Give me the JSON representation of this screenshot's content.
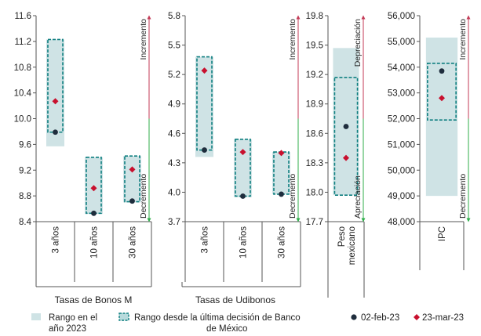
{
  "colors": {
    "range_year_fill": "#cfe3e5",
    "range_since_fill": "#b7dadc",
    "range_since_stroke": "#0f7f80",
    "feb_marker": "#1f2d3d",
    "mar_marker": "#c8102e",
    "arrow_up": "#c33a55",
    "arrow_down": "#2fae4a"
  },
  "legend": {
    "range_year": "Rango en el año 2023",
    "range_since": "Rango desde la última decisión de Banco de México",
    "date1": "02-feb-23",
    "date2": "23-mar-23"
  },
  "chart_data": [
    {
      "type": "range",
      "id": "bonos",
      "group_label": "Tasas de Bonos M",
      "ylim": [
        8.4,
        11.6
      ],
      "yticks": [
        "8.4",
        "8.8",
        "9.2",
        "9.6",
        "10.0",
        "10.4",
        "10.8",
        "11.2",
        "11.6"
      ],
      "categories": [
        "3 años",
        "10 años",
        "30 años"
      ],
      "range_year": [
        [
          9.57,
          11.23
        ],
        [
          8.52,
          9.4
        ],
        [
          8.7,
          9.42
        ]
      ],
      "range_since": [
        [
          9.79,
          11.23
        ],
        [
          8.53,
          9.4
        ],
        [
          8.71,
          9.42
        ]
      ],
      "series": [
        {
          "name": "02-feb-23",
          "values": [
            9.79,
            8.53,
            8.72
          ]
        },
        {
          "name": "23-mar-23",
          "values": [
            10.27,
            8.92,
            9.21
          ]
        }
      ],
      "direction": {
        "up": "Incremento",
        "down": "Decremento"
      }
    },
    {
      "type": "range",
      "id": "udibonos",
      "group_label": "Tasas de Udibonos",
      "ylim": [
        3.7,
        5.8
      ],
      "yticks": [
        "3.7",
        "4.0",
        "4.3",
        "4.6",
        "4.9",
        "5.2",
        "5.5",
        "5.8"
      ],
      "categories": [
        "3 años",
        "10 años",
        "30 años"
      ],
      "range_year": [
        [
          4.36,
          5.38
        ],
        [
          3.95,
          4.54
        ],
        [
          3.98,
          4.41
        ]
      ],
      "range_since": [
        [
          4.43,
          5.38
        ],
        [
          3.96,
          4.54
        ],
        [
          3.98,
          4.41
        ]
      ],
      "series": [
        {
          "name": "02-feb-23",
          "values": [
            4.43,
            3.96,
            3.98
          ]
        },
        {
          "name": "23-mar-23",
          "values": [
            5.24,
            4.41,
            4.4
          ]
        }
      ],
      "direction": {
        "up": "Incremento",
        "down": "Decremento"
      }
    },
    {
      "type": "range",
      "id": "peso",
      "group_label": "",
      "ylim": [
        17.7,
        19.8
      ],
      "yticks": [
        "17.7",
        "18.0",
        "18.3",
        "18.6",
        "18.9",
        "19.2",
        "19.5",
        "19.8"
      ],
      "categories": [
        "Peso mexicano"
      ],
      "range_year": [
        [
          17.97,
          19.47
        ]
      ],
      "range_since": [
        [
          17.97,
          19.17
        ]
      ],
      "series": [
        {
          "name": "02-feb-23",
          "values": [
            18.67
          ]
        },
        {
          "name": "23-mar-23",
          "values": [
            18.35
          ]
        }
      ],
      "direction": {
        "up": "Depreciación",
        "down": "Apreciación"
      }
    },
    {
      "type": "range",
      "id": "ipc",
      "group_label": "",
      "ylim": [
        48000,
        56000
      ],
      "yticks": [
        "48,000",
        "49,000",
        "50,000",
        "51,000",
        "52,000",
        "53,000",
        "54,000",
        "55,000",
        "56,000"
      ],
      "categories": [
        "IPC"
      ],
      "range_year": [
        [
          49000,
          55150
        ]
      ],
      "range_since": [
        [
          51950,
          54150
        ]
      ],
      "series": [
        {
          "name": "02-feb-23",
          "values": [
            53850
          ]
        },
        {
          "name": "23-mar-23",
          "values": [
            52800
          ]
        }
      ],
      "direction": {
        "up": "Incremento",
        "down": "Decremento"
      }
    }
  ]
}
